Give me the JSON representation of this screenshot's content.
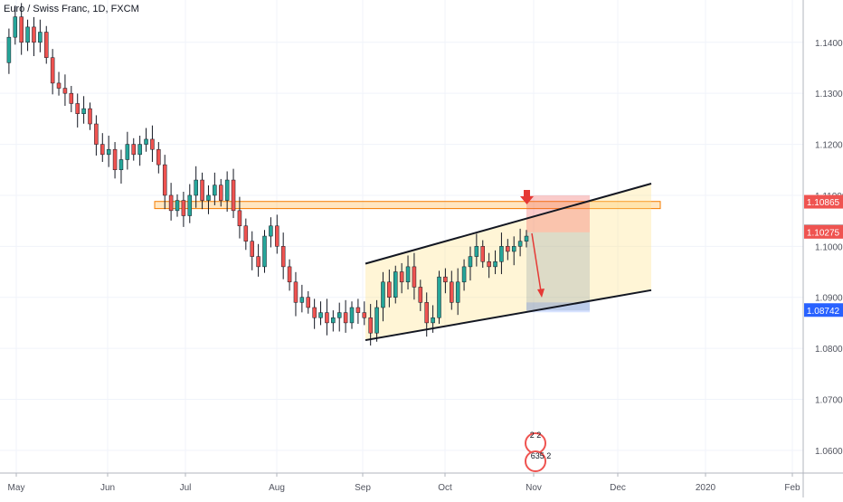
{
  "chart_data": {
    "type": "candlestick",
    "title": "Euro / Swiss Franc, 1D, FXCM",
    "timeframe": "1D",
    "colors": {
      "up": "#26a69a",
      "down": "#ef5350",
      "wick": "#131722",
      "grid": "#f0f3fa",
      "axis_text": "#50535e"
    },
    "ylim": [
      1.0543,
      1.1483
    ],
    "y_ticks": [
      "1.14000",
      "1.13000",
      "1.12000",
      "1.11000",
      "1.10000",
      "1.09000",
      "1.08000",
      "1.07000",
      "1.06000"
    ],
    "x_ticks": [
      "May",
      "Jun",
      "Jul",
      "Aug",
      "Sep",
      "Oct",
      "Nov",
      "Dec",
      "2020",
      "Feb"
    ],
    "price_labels": [
      {
        "value": 1.10865,
        "text": "1.10865",
        "color": "#ef5350"
      },
      {
        "value": 1.1028,
        "text": "1.10280",
        "color": "#363a45"
      },
      {
        "value": 1.10275,
        "text": "1.10275",
        "color": "#ef5350"
      },
      {
        "value": 1.08742,
        "text": "1.08742",
        "color": "#2962ff"
      }
    ],
    "candle_points": [
      1.136,
      1.141,
      1.145,
      1.14,
      1.143,
      1.14,
      1.142,
      1.137,
      1.132,
      1.131,
      1.13,
      1.128,
      1.126,
      1.127,
      1.124,
      1.12,
      1.118,
      1.119,
      1.115,
      1.117,
      1.12,
      1.118,
      1.12,
      1.121,
      1.119,
      1.116,
      1.11,
      1.107,
      1.109,
      1.106,
      1.11,
      1.113,
      1.109,
      1.11,
      1.112,
      1.109,
      1.113,
      1.107,
      1.104,
      1.101,
      1.098,
      1.096,
      1.102,
      1.104,
      1.1,
      1.096,
      1.093,
      1.089,
      1.09,
      1.088,
      1.086,
      1.087,
      1.085,
      1.086,
      1.087,
      1.085,
      1.088,
      1.087,
      1.086,
      1.083,
      1.088,
      1.093,
      1.09,
      1.095,
      1.093,
      1.096,
      1.092,
      1.089,
      1.085,
      1.086,
      1.094,
      1.093,
      1.089,
      1.093,
      1.096,
      1.098,
      1.1,
      1.097,
      1.096,
      1.097,
      1.1,
      1.099,
      1.1,
      1.101,
      1.102
    ],
    "markers": [
      "2 2",
      "635 2"
    ],
    "bubbles": [
      "2",
      "2"
    ]
  }
}
